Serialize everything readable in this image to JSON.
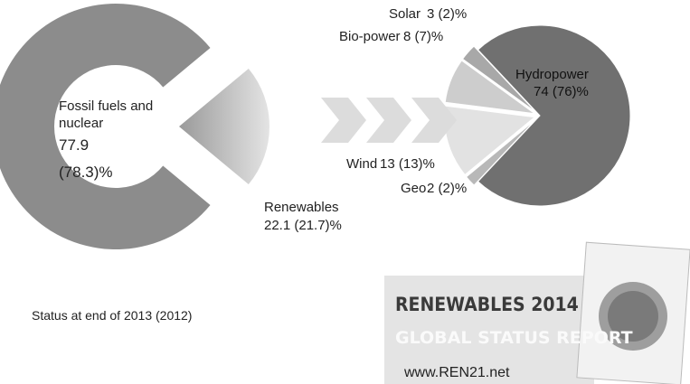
{
  "chart_data": [
    {
      "type": "pie",
      "donut": true,
      "categories": [
        "Fossil fuels and nuclear",
        "Renewables"
      ],
      "values": [
        77.9,
        22.1
      ],
      "value_labels": [
        "77.9 (78.3)%",
        "22.1 (21.7)%"
      ],
      "colors": [
        "#8c8c8c",
        "#b5b5b5"
      ]
    },
    {
      "type": "pie",
      "categories": [
        "Hydropower",
        "Geo",
        "Wind",
        "Bio-power",
        "Solar"
      ],
      "values": [
        74,
        2,
        13,
        8,
        3
      ],
      "value_labels": [
        "74 (76)%",
        "2 (2)%",
        "13 (13)%",
        "8 (7)%",
        "3 (2)%"
      ],
      "colors": [
        "#707070",
        "#b8b8b8",
        "#e2e2e2",
        "#cdcdcd",
        "#a8a8a8"
      ]
    }
  ],
  "footnote": "Status at end of 2013 (2012)",
  "report": {
    "title": "RENEWABLES 2014",
    "subtitle": "GLOBAL STATUS REPORT",
    "url": "www.REN21.net"
  }
}
